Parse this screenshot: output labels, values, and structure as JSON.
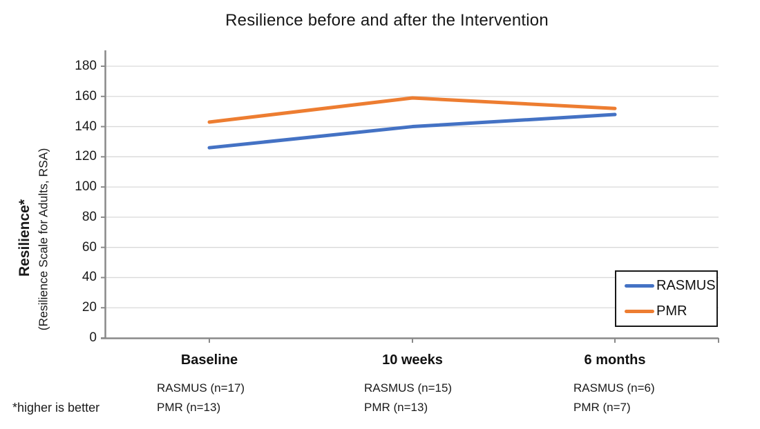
{
  "title": "Resilience before and after the Intervention",
  "y_axis": {
    "label_bold": "Resilience*",
    "label_sub": "(Resilience Scale for Adults, RSA)",
    "ticks": [
      0,
      20,
      40,
      60,
      80,
      100,
      120,
      140,
      160,
      180
    ]
  },
  "footnote": "*higher is better",
  "legend": {
    "items": [
      {
        "label": "RASMUS",
        "color": "#4472C4"
      },
      {
        "label": "PMR",
        "color": "#ED7D31"
      }
    ]
  },
  "colors": {
    "rasmus_line": "#4472C4",
    "pmr_line": "#ED7D31",
    "gridline": "#D9D9D9",
    "axis": "#898989",
    "text": "#1a1a1a"
  },
  "chart_data": {
    "type": "line",
    "title": "Resilience before and after the Intervention",
    "categories": [
      "Baseline",
      "10 weeks",
      "6 months"
    ],
    "series": [
      {
        "name": "RASMUS",
        "color": "#4472C4",
        "values": [
          126,
          140,
          148
        ]
      },
      {
        "name": "PMR",
        "color": "#ED7D31",
        "values": [
          143,
          159,
          152
        ]
      }
    ],
    "xlabel": "",
    "ylabel": "Resilience* (Resilience Scale for Adults, RSA)",
    "ylim": [
      0,
      180
    ],
    "ytick_step": 20,
    "grid": "horizontal",
    "legend_position": "inside-right-bottom",
    "annotations": {
      "groups": [
        {
          "category": "Baseline",
          "lines": [
            "RASMUS (n=17)",
            "PMR (n=13)"
          ]
        },
        {
          "category": "10 weeks",
          "lines": [
            "RASMUS (n=15)",
            "PMR (n=13)"
          ]
        },
        {
          "category": "6 months",
          "lines": [
            "RASMUS (n=6)",
            "PMR (n=7)"
          ]
        }
      ],
      "footnote": "*higher is better"
    }
  }
}
